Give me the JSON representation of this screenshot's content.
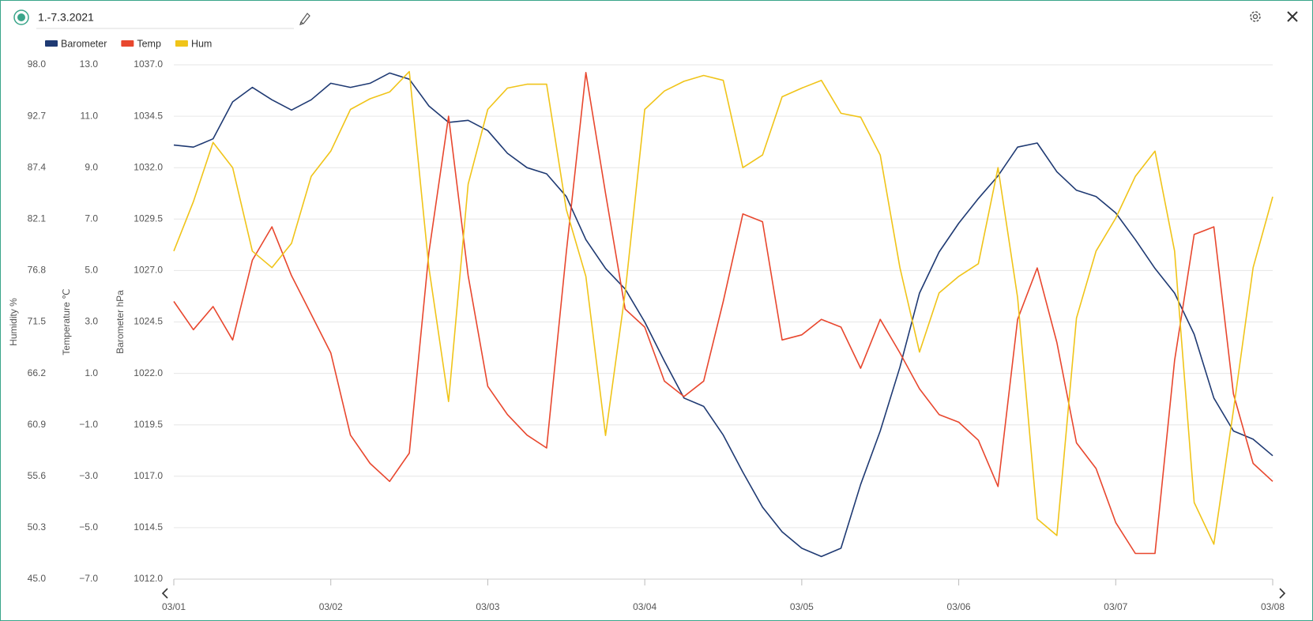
{
  "chart_data": {
    "type": "line",
    "title": "1.-7.3.2021",
    "legend": "top-left",
    "grid": true,
    "xlim": [
      0,
      7
    ],
    "xticks": [
      {
        "value": 0,
        "label": "03/01"
      },
      {
        "value": 1,
        "label": "03/02"
      },
      {
        "value": 2,
        "label": "03/03"
      },
      {
        "value": 3,
        "label": "03/04"
      },
      {
        "value": 4,
        "label": "03/05"
      },
      {
        "value": 5,
        "label": "03/06"
      },
      {
        "value": 6,
        "label": "03/07"
      },
      {
        "value": 7,
        "label": "03/08"
      }
    ],
    "x": [
      0,
      0.125,
      0.25,
      0.375,
      0.5,
      0.625,
      0.75,
      0.875,
      1,
      1.125,
      1.25,
      1.375,
      1.5,
      1.625,
      1.75,
      1.875,
      2,
      2.125,
      2.25,
      2.375,
      2.5,
      2.625,
      2.75,
      2.875,
      3,
      3.125,
      3.25,
      3.375,
      3.5,
      3.625,
      3.75,
      3.875,
      4,
      4.125,
      4.25,
      4.375,
      4.5,
      4.625,
      4.75,
      4.875,
      5,
      5.125,
      5.25,
      5.375,
      5.5,
      5.625,
      5.75,
      5.875,
      6,
      6.125,
      6.25,
      6.375,
      6.5,
      6.625,
      6.75,
      6.875,
      7
    ],
    "yaxes": [
      {
        "label": "Humidity %",
        "lim": [
          45,
          98
        ],
        "ticks": [
          {
            "value": 98,
            "label": "98.0"
          },
          92.7,
          87.4,
          82.1,
          76.8,
          71.5,
          66.2,
          60.9,
          55.6,
          50.3,
          {
            "value": 45,
            "label": "45.0"
          }
        ]
      },
      {
        "label": "Temperature ℃",
        "lim": [
          -7,
          13
        ],
        "ticks": [
          {
            "value": 13,
            "label": "13.0"
          },
          {
            "value": 11,
            "label": "11.0"
          },
          {
            "value": 9,
            "label": "9.0"
          },
          {
            "value": 7,
            "label": "7.0"
          },
          {
            "value": 5,
            "label": "5.0"
          },
          {
            "value": 3,
            "label": "3.0"
          },
          {
            "value": 1,
            "label": "1.0"
          },
          {
            "value": -1,
            "label": "−1.0"
          },
          {
            "value": -3,
            "label": "−3.0"
          },
          {
            "value": -5,
            "label": "−5.0"
          },
          {
            "value": -7,
            "label": "−7.0"
          }
        ]
      },
      {
        "label": "Barometer hPa",
        "lim": [
          1012,
          1037
        ],
        "ticks": [
          {
            "value": 1037,
            "label": "1037.0"
          },
          1034.5,
          {
            "value": 1032,
            "label": "1032.0"
          },
          1029.5,
          {
            "value": 1027,
            "label": "1027.0"
          },
          1024.5,
          {
            "value": 1022,
            "label": "1022.0"
          },
          1019.5,
          {
            "value": 1017,
            "label": "1017.0"
          },
          1014.5,
          {
            "value": 1012,
            "label": "1012.0"
          }
        ]
      }
    ],
    "series": [
      {
        "name": "Barometer",
        "color": "#1f3a73",
        "axis": 2,
        "values": [
          1033.1,
          1033.0,
          1033.4,
          1035.2,
          1035.9,
          1035.3,
          1034.8,
          1035.3,
          1036.1,
          1035.9,
          1036.1,
          1036.6,
          1036.3,
          1035.0,
          1034.2,
          1034.3,
          1033.8,
          1032.7,
          1032.0,
          1031.7,
          1030.6,
          1028.5,
          1027.1,
          1026.1,
          1024.5,
          1022.6,
          1020.8,
          1020.4,
          1019.0,
          1017.2,
          1015.5,
          1014.3,
          1013.5,
          1013.1,
          1013.5,
          1016.6,
          1019.2,
          1022.3,
          1025.9,
          1027.9,
          1029.3,
          1030.5,
          1031.6,
          1033.0,
          1033.2,
          1031.8,
          1030.9,
          1030.6,
          1029.8,
          1028.5,
          1027.1,
          1025.9,
          1023.9,
          1020.8,
          1019.2,
          1018.8,
          1018.0
        ]
      },
      {
        "name": "Temp",
        "color": "#e8472e",
        "axis": 1,
        "values": [
          3.8,
          2.7,
          3.6,
          2.3,
          5.4,
          6.7,
          4.8,
          3.3,
          1.8,
          -1.4,
          -2.5,
          -3.2,
          -2.1,
          5.7,
          11.0,
          4.8,
          0.5,
          -0.6,
          -1.4,
          -1.9,
          5.7,
          12.7,
          8.0,
          3.5,
          2.8,
          0.7,
          0.1,
          0.7,
          3.8,
          7.2,
          6.9,
          2.3,
          2.5,
          3.1,
          2.8,
          1.2,
          3.1,
          1.8,
          0.4,
          -0.6,
          -0.9,
          -1.6,
          -3.4,
          3.1,
          5.1,
          2.2,
          -1.7,
          -2.7,
          -4.8,
          -6.0,
          -6.0,
          1.5,
          6.4,
          6.7,
          0.2,
          -2.5,
          -3.2
        ]
      },
      {
        "name": "Hum",
        "color": "#f0c419",
        "axis": 0,
        "values": [
          78.8,
          83.9,
          90.0,
          87.4,
          78.8,
          77.1,
          79.6,
          86.5,
          89.1,
          93.4,
          94.5,
          95.2,
          97.3,
          77.1,
          63.3,
          85.7,
          93.4,
          95.6,
          96.0,
          96.0,
          83.1,
          76.2,
          59.8,
          74.5,
          93.4,
          95.3,
          96.3,
          96.9,
          96.4,
          87.4,
          88.7,
          94.7,
          95.6,
          96.4,
          93.0,
          92.6,
          88.7,
          77.1,
          68.4,
          74.5,
          76.2,
          77.5,
          87.4,
          74.0,
          51.2,
          49.5,
          71.9,
          78.8,
          82.2,
          86.5,
          89.1,
          78.8,
          52.9,
          48.6,
          62.4,
          77.1,
          84.4
        ]
      }
    ]
  }
}
